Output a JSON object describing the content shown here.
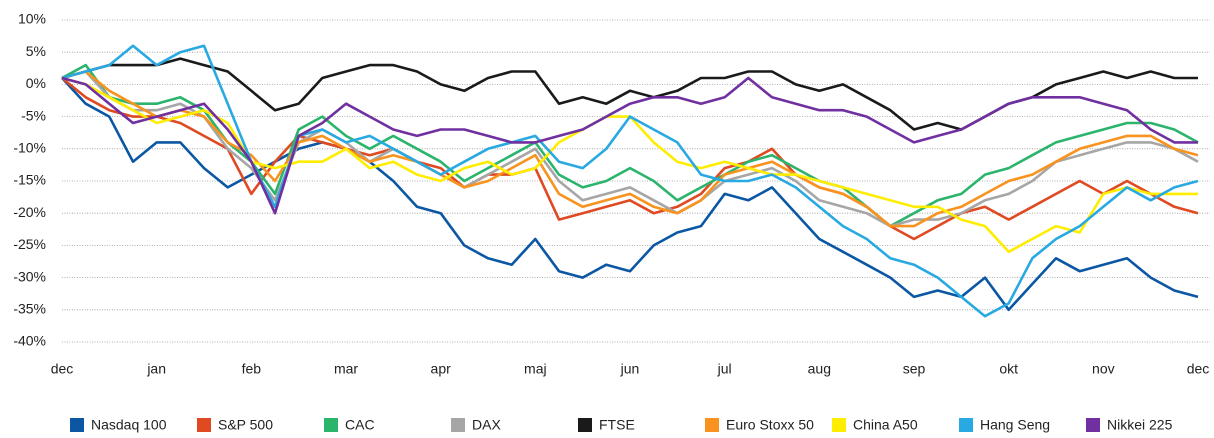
{
  "chart_data": {
    "type": "line",
    "categories": [
      "dec",
      null,
      null,
      null,
      "jan",
      null,
      null,
      null,
      "feb",
      null,
      null,
      null,
      "mar",
      null,
      null,
      null,
      "apr",
      null,
      null,
      null,
      "maj",
      null,
      null,
      null,
      "jun",
      null,
      null,
      null,
      "jul",
      null,
      null,
      null,
      "aug",
      null,
      null,
      null,
      "sep",
      null,
      null,
      null,
      "okt",
      null,
      null,
      null,
      "nov",
      null,
      null,
      null,
      "dec"
    ],
    "ylim": [
      -40,
      10
    ],
    "yticks": [
      {
        "value": 10,
        "label": "10%"
      },
      {
        "value": 5,
        "label": "5%"
      },
      {
        "value": 0,
        "label": "0%"
      },
      {
        "value": -5,
        "label": "-5%"
      },
      {
        "value": -10,
        "label": "-10%"
      },
      {
        "value": -15,
        "label": "-15%"
      },
      {
        "value": -20,
        "label": "-20%"
      },
      {
        "value": -25,
        "label": "-25%"
      },
      {
        "value": -30,
        "label": "-30%"
      },
      {
        "value": -35,
        "label": "-35%"
      },
      {
        "value": -40,
        "label": "-40%"
      }
    ],
    "grid": true,
    "legend": "bottom",
    "series": [
      {
        "name": "Nasdaq 100",
        "color": "#0b57a4",
        "values": [
          1,
          -3,
          -5,
          -12,
          -9,
          -9,
          -13,
          -16,
          -14,
          -12,
          -10,
          -9,
          -10,
          -12,
          -15,
          -19,
          -20,
          -25,
          -27,
          -28,
          -24,
          -29,
          -30,
          -28,
          -29,
          -25,
          -23,
          -22,
          -17,
          -18,
          -16,
          -20,
          -24,
          -26,
          -28,
          -30,
          -33,
          -32,
          -33,
          -30,
          -35,
          -31,
          -27,
          -29,
          -28,
          -27,
          -30,
          -32,
          -33
        ]
      },
      {
        "name": "S&P 500",
        "color": "#e04a22",
        "values": [
          1,
          -2,
          -4,
          -5,
          -5,
          -6,
          -8,
          -10,
          -17,
          -12,
          -8,
          -9,
          -10,
          -11,
          -10,
          -12,
          -13,
          -16,
          -14,
          -14,
          -13,
          -21,
          -20,
          -19,
          -18,
          -20,
          -19,
          -17,
          -13,
          -12,
          -10,
          -14,
          -16,
          -17,
          -19,
          -22,
          -24,
          -22,
          -20,
          -19,
          -21,
          -19,
          -17,
          -15,
          -17,
          -15,
          -17,
          -19,
          -20
        ]
      },
      {
        "name": "CAC",
        "color": "#2bb46c",
        "values": [
          1,
          3,
          -2,
          -3,
          -3,
          -2,
          -4,
          -9,
          -12,
          -17,
          -7,
          -5,
          -8,
          -10,
          -8,
          -10,
          -12,
          -15,
          -13,
          -11,
          -9,
          -14,
          -16,
          -15,
          -13,
          -15,
          -18,
          -16,
          -14,
          -12,
          -11,
          -13,
          -15,
          -16,
          -19,
          -22,
          -20,
          -18,
          -17,
          -14,
          -13,
          -11,
          -9,
          -8,
          -7,
          -6,
          -6,
          -7,
          -9
        ]
      },
      {
        "name": "DAX",
        "color": "#a6a6a6",
        "values": [
          1,
          2,
          -2,
          -4,
          -4,
          -3,
          -5,
          -10,
          -13,
          -18,
          -9,
          -7,
          -9,
          -12,
          -10,
          -12,
          -14,
          -16,
          -14,
          -12,
          -10,
          -15,
          -18,
          -17,
          -16,
          -18,
          -20,
          -18,
          -15,
          -14,
          -13,
          -15,
          -18,
          -19,
          -20,
          -22,
          -21,
          -21,
          -20,
          -18,
          -17,
          -15,
          -12,
          -11,
          -10,
          -9,
          -9,
          -10,
          -12
        ]
      },
      {
        "name": "FTSE",
        "color": "#1a1a1a",
        "values": [
          1,
          2,
          3,
          3,
          3,
          4,
          3,
          2,
          -1,
          -4,
          -3,
          1,
          2,
          3,
          3,
          2,
          0,
          -1,
          1,
          2,
          2,
          -3,
          -2,
          -3,
          -1,
          -2,
          -1,
          1,
          1,
          2,
          2,
          0,
          -1,
          0,
          -2,
          -4,
          -7,
          -6,
          -7,
          -5,
          -3,
          -2,
          0,
          1,
          2,
          1,
          2,
          1,
          1
        ]
      },
      {
        "name": "Euro Stoxx 50",
        "color": "#f7931e",
        "values": [
          1,
          2,
          -1,
          -3,
          -5,
          -4,
          -5,
          -9,
          -11,
          -15,
          -9,
          -8,
          -10,
          -12,
          -11,
          -12,
          -14,
          -16,
          -15,
          -13,
          -11,
          -17,
          -19,
          -18,
          -17,
          -19,
          -20,
          -18,
          -14,
          -13,
          -12,
          -14,
          -16,
          -17,
          -19,
          -22,
          -22,
          -20,
          -19,
          -17,
          -15,
          -14,
          -12,
          -10,
          -9,
          -8,
          -8,
          -10,
          -11
        ]
      },
      {
        "name": "China A50",
        "color": "#ffed00",
        "values": [
          1,
          0,
          -2,
          -4,
          -6,
          -5,
          -4,
          -6,
          -12,
          -13,
          -12,
          -12,
          -10,
          -13,
          -12,
          -14,
          -15,
          -13,
          -12,
          -14,
          -13,
          -9,
          -7,
          -5,
          -5,
          -9,
          -12,
          -13,
          -12,
          -13,
          -14,
          -14,
          -15,
          -16,
          -17,
          -18,
          -19,
          -19,
          -21,
          -22,
          -26,
          -24,
          -22,
          -23,
          -17,
          -16,
          -17,
          -17,
          -17
        ]
      },
      {
        "name": "Hang Seng",
        "color": "#29a9e1",
        "values": [
          1,
          2,
          3,
          6,
          3,
          5,
          6,
          -3,
          -12,
          -19,
          -8,
          -7,
          -9,
          -8,
          -10,
          -12,
          -14,
          -12,
          -10,
          -9,
          -8,
          -12,
          -13,
          -10,
          -5,
          -7,
          -9,
          -14,
          -15,
          -15,
          -14,
          -16,
          -19,
          -22,
          -24,
          -27,
          -28,
          -30,
          -33,
          -36,
          -34,
          -27,
          -24,
          -22,
          -19,
          -16,
          -18,
          -16,
          -15
        ]
      },
      {
        "name": "Nikkei 225",
        "color": "#7030a0",
        "values": [
          1,
          0,
          -3,
          -6,
          -5,
          -4,
          -3,
          -7,
          -12,
          -20,
          -8,
          -6,
          -3,
          -5,
          -7,
          -8,
          -7,
          -7,
          -8,
          -9,
          -9,
          -8,
          -7,
          -5,
          -3,
          -2,
          -2,
          -3,
          -2,
          1,
          -2,
          -3,
          -4,
          -4,
          -5,
          -7,
          -9,
          -8,
          -7,
          -5,
          -3,
          -2,
          -2,
          -2,
          -3,
          -4,
          -7,
          -9,
          -9
        ]
      }
    ]
  }
}
